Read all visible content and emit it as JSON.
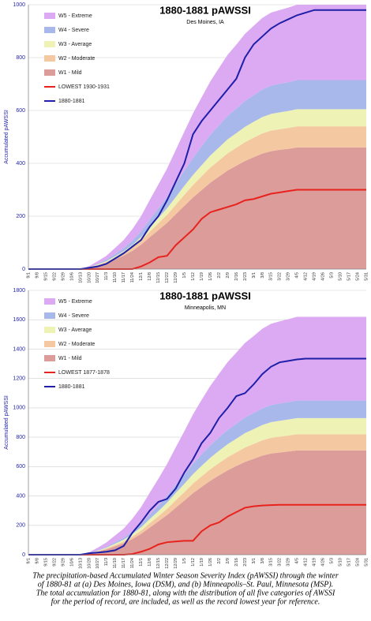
{
  "chart_data": [
    {
      "type": "area",
      "title": "1880-1881 pAWSSI",
      "subtitle": "Des Moines, IA",
      "ylabel": "Accumulated pAWSSI",
      "categories": [
        "9/1",
        "9/8",
        "9/15",
        "9/22",
        "9/29",
        "10/6",
        "10/13",
        "10/20",
        "10/27",
        "11/3",
        "11/10",
        "11/17",
        "11/24",
        "12/1",
        "12/8",
        "12/15",
        "12/22",
        "12/29",
        "1/5",
        "1/12",
        "1/19",
        "1/26",
        "2/2",
        "2/9",
        "2/16",
        "2/23",
        "3/1",
        "3/8",
        "3/15",
        "3/22",
        "3/29",
        "4/5",
        "4/12",
        "4/19",
        "4/26",
        "5/3",
        "5/10",
        "5/17",
        "5/24",
        "5/31"
      ],
      "ylim": [
        0,
        1000
      ],
      "yticks": [
        0,
        200,
        400,
        600,
        800,
        1000
      ],
      "grid": true,
      "series": [
        {
          "name": "W5 - Extreme",
          "kind": "area",
          "color": "#dcaaf2",
          "values": [
            0,
            0,
            0,
            0,
            0,
            0,
            0,
            3,
            9,
            14,
            23,
            31,
            43,
            57,
            74,
            91,
            108,
            128,
            148,
            168,
            185,
            202,
            217,
            231,
            242,
            254,
            262,
            271,
            276,
            279,
            282,
            285,
            285,
            285,
            285,
            285,
            285,
            285,
            285,
            285
          ]
        },
        {
          "name": "W4 - Severe",
          "kind": "area",
          "color": "#a9b8ea",
          "values": [
            0,
            0,
            0,
            0,
            0,
            0,
            0,
            1,
            3,
            6,
            9,
            12,
            17,
            22,
            29,
            35,
            42,
            50,
            57,
            65,
            72,
            78,
            84,
            89,
            93,
            98,
            101,
            104,
            107,
            108,
            109,
            110,
            110,
            110,
            110,
            110,
            110,
            110,
            110,
            110
          ]
        },
        {
          "name": "W3 - Average",
          "kind": "area",
          "color": "#eef2b4",
          "values": [
            0,
            0,
            0,
            0,
            0,
            0,
            0,
            1,
            2,
            3,
            5,
            7,
            10,
            13,
            17,
            21,
            25,
            29,
            34,
            38,
            42,
            46,
            49,
            53,
            55,
            58,
            60,
            62,
            63,
            64,
            64,
            65,
            65,
            65,
            65,
            65,
            65,
            65,
            65,
            65
          ]
        },
        {
          "name": "W2 - Moderate",
          "kind": "area",
          "color": "#f4c9a2",
          "values": [
            0,
            0,
            0,
            0,
            0,
            0,
            0,
            1,
            2,
            4,
            6,
            9,
            12,
            16,
            21,
            26,
            30,
            36,
            42,
            47,
            52,
            57,
            61,
            65,
            68,
            71,
            74,
            76,
            78,
            78,
            79,
            80,
            80,
            80,
            80,
            80,
            80,
            80,
            80,
            80
          ]
        },
        {
          "name": "W1 - Mild",
          "kind": "area",
          "color": "#dc9c9a",
          "values": [
            0,
            0,
            0,
            0,
            0,
            0,
            0,
            5,
            14,
            23,
            37,
            51,
            69,
            92,
            120,
            147,
            175,
            207,
            239,
            271,
            299,
            327,
            350,
            373,
            391,
            409,
            423,
            437,
            446,
            451,
            455,
            460,
            460,
            460,
            460,
            460,
            460,
            460,
            460,
            460
          ]
        },
        {
          "name": "LOWEST 1930-1931",
          "kind": "line",
          "color": "#e8231e",
          "values": [
            0,
            0,
            0,
            0,
            0,
            0,
            0,
            0,
            0,
            0,
            0,
            0,
            0,
            10,
            25,
            45,
            50,
            90,
            120,
            150,
            190,
            215,
            225,
            235,
            245,
            260,
            265,
            275,
            285,
            290,
            295,
            300,
            300,
            300,
            300,
            300,
            300,
            300,
            300,
            300
          ]
        },
        {
          "name": "1880-1881",
          "kind": "line",
          "color": "#1f1fa8",
          "values": [
            0,
            0,
            0,
            0,
            0,
            0,
            0,
            5,
            10,
            20,
            40,
            60,
            85,
            110,
            160,
            200,
            260,
            330,
            400,
            510,
            560,
            600,
            640,
            680,
            720,
            800,
            850,
            880,
            910,
            930,
            945,
            960,
            970,
            980,
            980,
            980,
            980,
            980,
            980,
            980
          ]
        }
      ]
    },
    {
      "type": "area",
      "title": "1880-1881 pAWSSI",
      "subtitle": "Minneapolis, MN",
      "ylabel": "Accumulated pAWSSI",
      "categories": [
        "9/1",
        "9/8",
        "9/15",
        "9/22",
        "9/29",
        "10/6",
        "10/13",
        "10/20",
        "10/27",
        "11/3",
        "11/10",
        "11/17",
        "11/24",
        "12/1",
        "12/8",
        "12/15",
        "12/22",
        "12/29",
        "1/5",
        "1/12",
        "1/19",
        "1/26",
        "2/2",
        "2/9",
        "2/16",
        "2/23",
        "3/1",
        "3/8",
        "3/15",
        "3/22",
        "3/29",
        "4/5",
        "4/12",
        "4/19",
        "4/26",
        "5/3",
        "5/10",
        "5/17",
        "5/24",
        "5/31"
      ],
      "ylim": [
        0,
        1800
      ],
      "yticks": [
        0,
        200,
        400,
        600,
        800,
        1000,
        1200,
        1400,
        1600,
        1800
      ],
      "grid": true,
      "series": [
        {
          "name": "W5 - Extreme",
          "kind": "area",
          "color": "#dcaaf2",
          "values": [
            0,
            0,
            0,
            0,
            0,
            0,
            0,
            6,
            17,
            29,
            46,
            63,
            86,
            114,
            148,
            182,
            217,
            257,
            296,
            336,
            371,
            405,
            433,
            462,
            484,
            507,
            524,
            542,
            553,
            559,
            564,
            570,
            570,
            570,
            570,
            570,
            570,
            570,
            570,
            570
          ]
        },
        {
          "name": "W4 - Severe",
          "kind": "area",
          "color": "#a9b8ea",
          "values": [
            0,
            0,
            0,
            0,
            0,
            0,
            0,
            1,
            4,
            6,
            10,
            13,
            18,
            24,
            31,
            38,
            46,
            54,
            62,
            71,
            78,
            85,
            91,
            97,
            102,
            107,
            110,
            114,
            116,
            118,
            119,
            120,
            120,
            120,
            120,
            120,
            120,
            120,
            120,
            120
          ]
        },
        {
          "name": "W3 - Average",
          "kind": "area",
          "color": "#eef2b4",
          "values": [
            0,
            0,
            0,
            0,
            0,
            0,
            0,
            1,
            3,
            6,
            9,
            12,
            17,
            22,
            29,
            35,
            42,
            50,
            57,
            65,
            72,
            78,
            84,
            89,
            93,
            98,
            101,
            104,
            107,
            108,
            109,
            110,
            110,
            110,
            110,
            110,
            110,
            110,
            110,
            110
          ]
        },
        {
          "name": "W2 - Moderate",
          "kind": "area",
          "color": "#f4c9a2",
          "values": [
            0,
            0,
            0,
            0,
            0,
            0,
            0,
            1,
            3,
            6,
            9,
            12,
            17,
            22,
            29,
            35,
            42,
            50,
            57,
            65,
            72,
            78,
            84,
            89,
            93,
            98,
            101,
            104,
            107,
            108,
            109,
            110,
            110,
            110,
            110,
            110,
            110,
            110,
            110,
            110
          ]
        },
        {
          "name": "W1 - Mild",
          "kind": "area",
          "color": "#dc9c9a",
          "values": [
            0,
            0,
            0,
            0,
            0,
            0,
            0,
            7,
            21,
            36,
            57,
            78,
            107,
            142,
            185,
            227,
            270,
            320,
            369,
            419,
            462,
            504,
            540,
            575,
            604,
            632,
            653,
            675,
            689,
            696,
            703,
            710,
            710,
            710,
            710,
            710,
            710,
            710,
            710,
            710
          ]
        },
        {
          "name": "LOWEST 1877-1878",
          "kind": "line",
          "color": "#e8231e",
          "values": [
            0,
            0,
            0,
            0,
            0,
            0,
            0,
            0,
            0,
            0,
            0,
            0,
            5,
            20,
            40,
            70,
            85,
            90,
            95,
            95,
            160,
            200,
            220,
            260,
            290,
            320,
            330,
            335,
            338,
            340,
            340,
            340,
            340,
            340,
            340,
            340,
            340,
            340,
            340,
            340
          ]
        },
        {
          "name": "1880-1881",
          "kind": "line",
          "color": "#1f1fa8",
          "values": [
            0,
            0,
            0,
            0,
            0,
            0,
            0,
            10,
            15,
            20,
            30,
            60,
            150,
            220,
            300,
            360,
            380,
            450,
            560,
            650,
            760,
            830,
            930,
            1000,
            1080,
            1100,
            1160,
            1230,
            1280,
            1310,
            1320,
            1330,
            1335,
            1335,
            1335,
            1335,
            1335,
            1335,
            1335,
            1335
          ]
        }
      ]
    }
  ],
  "caption": [
    "The precipitation-based Accumulated Winter Season Severity Index (pAWSSI) through the winter",
    "of 1880-81 at (a) Des Moines, Iowa (DSM), and (b) Minneapolis–St. Paul, Minnesota (MSP).",
    "The total accumulation for 1880-81, along with the distribution of all five categories of AWSSI",
    "for the period of record, are included, as well as the record lowest year for reference."
  ]
}
